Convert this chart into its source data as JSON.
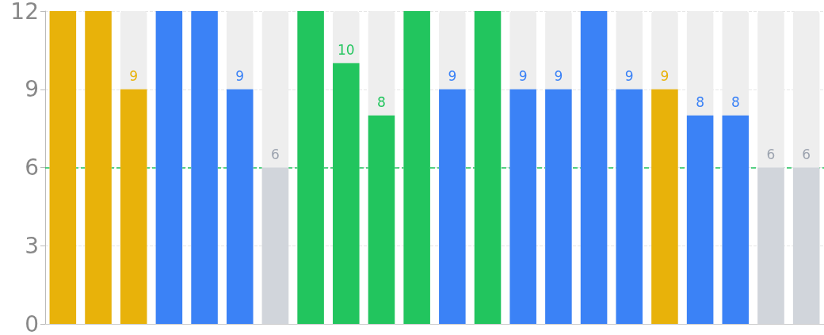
{
  "chart_data": {
    "type": "bar",
    "categories": [
      null,
      null,
      null,
      null,
      null,
      null,
      null,
      null,
      null,
      null,
      null,
      null,
      null,
      null,
      null,
      null,
      null,
      null,
      null,
      null,
      null,
      null
    ],
    "values": [
      12,
      12,
      9,
      12,
      12,
      9,
      6,
      12,
      10,
      8,
      12,
      9,
      12,
      9,
      9,
      12,
      9,
      9,
      8,
      8,
      6,
      6
    ],
    "colors": [
      "#e8b20a",
      "#e8b20a",
      "#e8b20a",
      "#3b82f6",
      "#3b82f6",
      "#3b82f6",
      "#d1d5db",
      "#22c55e",
      "#22c55e",
      "#22c55e",
      "#22c55e",
      "#3b82f6",
      "#22c55e",
      "#3b82f6",
      "#3b82f6",
      "#3b82f6",
      "#3b82f6",
      "#e8b20a",
      "#3b82f6",
      "#3b82f6",
      "#d1d5db",
      "#d1d5db"
    ],
    "value_labels": [
      null,
      null,
      "9",
      null,
      null,
      "9",
      "6",
      null,
      "10",
      "8",
      null,
      "9",
      null,
      "9",
      "9",
      null,
      "9",
      "9",
      "8",
      "8",
      "6",
      "6"
    ],
    "ylim": [
      0,
      12
    ],
    "yticks": [
      0,
      3,
      6,
      9,
      12
    ],
    "grid": "y",
    "ref_lines": [
      {
        "axis": "y",
        "value": 6,
        "color": "#22c55e",
        "line_style": "dashed"
      }
    ]
  }
}
